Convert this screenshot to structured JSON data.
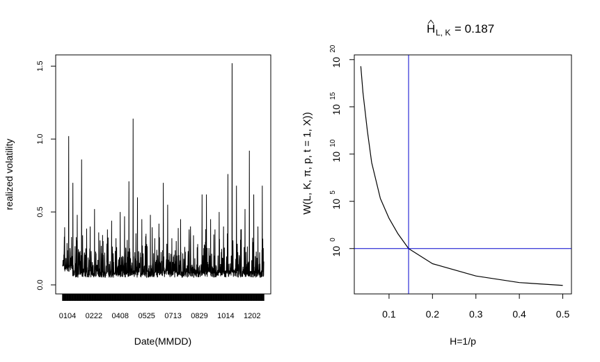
{
  "chart_data": [
    {
      "type": "line",
      "title": "",
      "xlabel": "Date(MMDD)",
      "ylabel": "realized volatility",
      "x_tick_labels": [
        "0104",
        "0222",
        "0408",
        "0525",
        "0713",
        "0829",
        "1014",
        "1202"
      ],
      "y_ticks": [
        0.0,
        0.5,
        1.0,
        1.5
      ],
      "y_tick_labels": [
        "0.0",
        "0.5",
        "1.0",
        "1.5"
      ],
      "ylim": [
        0,
        1.52
      ],
      "grid": false,
      "series": [
        {
          "values": [
            0.33,
            1.02,
            0.7,
            0.48,
            0.86,
            0.25,
            0.4,
            0.52,
            0.36,
            0.3,
            0.38,
            0.44,
            0.32,
            0.5,
            0.47,
            0.71,
            1.14,
            0.6,
            0.45,
            0.35,
            0.48,
            0.32,
            0.42,
            0.7,
            0.55,
            0.32,
            0.3,
            0.45,
            0.26,
            0.38,
            0.34,
            0.28,
            0.62,
            0.62,
            0.45,
            0.38,
            0.5,
            0.4,
            0.76,
            1.52,
            0.68,
            0.38,
            0.52,
            0.92,
            0.62,
            0.4,
            0.68
          ],
          "color": "#000000"
        }
      ]
    },
    {
      "type": "line",
      "title_main": "H",
      "title_sub": "L, K",
      "title_value": "= 0.187",
      "xlabel": "H=1/p",
      "ylabel": "W(L, K, π, p, t = 1, X))",
      "y_scale": "log",
      "x_ticks": [
        0.1,
        0.2,
        0.3,
        0.4,
        0.5
      ],
      "x_tick_labels": [
        "0.1",
        "0.2",
        "0.3",
        "0.4",
        "0.5"
      ],
      "xlim": [
        0.02,
        0.52
      ],
      "y_tick_exponents": [
        0,
        5,
        10,
        15,
        20
      ],
      "y_tick_base": "10",
      "ylim_log10": [
        -4.8,
        20.5
      ],
      "grid": false,
      "series": [
        {
          "x": [
            0.035,
            0.04,
            0.05,
            0.06,
            0.08,
            0.1,
            0.12,
            0.145,
            0.2,
            0.3,
            0.4,
            0.5
          ],
          "log10_y": [
            19.3,
            16.5,
            12.5,
            9.1,
            5.3,
            3.2,
            1.6,
            0.0,
            -1.6,
            -2.9,
            -3.6,
            -3.9
          ],
          "color": "#000000"
        }
      ],
      "reference_lines": {
        "vertical_x": 0.145,
        "horizontal_log10_y": 0,
        "color": "#0000cc"
      }
    }
  ]
}
